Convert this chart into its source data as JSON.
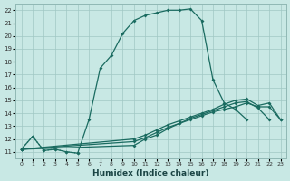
{
  "xlabel": "Humidex (Indice chaleur)",
  "xlim": [
    -0.5,
    23.5
  ],
  "ylim": [
    10.5,
    22.5
  ],
  "xticks": [
    0,
    1,
    2,
    3,
    4,
    5,
    6,
    7,
    8,
    9,
    10,
    11,
    12,
    13,
    14,
    15,
    16,
    17,
    18,
    19,
    20,
    21,
    22,
    23
  ],
  "yticks": [
    11,
    12,
    13,
    14,
    15,
    16,
    17,
    18,
    19,
    20,
    21,
    22
  ],
  "background_color": "#c8e8e4",
  "grid_color": "#a0c8c4",
  "line_color": "#1a6b60",
  "line1_x": [
    0,
    1,
    2,
    3,
    4,
    5,
    6,
    7,
    8,
    9,
    10,
    11,
    12,
    13,
    14,
    15,
    16,
    17,
    18,
    19,
    20
  ],
  "line1_y": [
    11.2,
    12.2,
    11.1,
    11.2,
    11.0,
    10.9,
    13.5,
    17.5,
    18.5,
    20.2,
    21.2,
    21.6,
    21.8,
    22.0,
    22.0,
    22.1,
    21.2,
    16.6,
    14.8,
    14.3,
    13.5
  ],
  "line1_dot_x": [
    0,
    1,
    2,
    3,
    4,
    5
  ],
  "line1_dot_y": [
    11.2,
    12.2,
    11.1,
    11.2,
    11.0,
    10.9
  ],
  "line2_x": [
    0,
    10,
    11,
    12,
    13,
    14,
    15,
    16,
    17,
    18,
    19,
    20,
    21,
    22
  ],
  "line2_y": [
    11.2,
    11.5,
    12.0,
    12.3,
    12.8,
    13.2,
    13.6,
    13.9,
    14.2,
    14.5,
    14.8,
    14.9,
    14.4,
    13.5
  ],
  "line3_x": [
    0,
    10,
    11,
    12,
    13,
    14,
    15,
    16,
    17,
    18,
    19,
    20,
    21,
    22,
    23
  ],
  "line3_y": [
    11.2,
    11.8,
    12.1,
    12.5,
    12.9,
    13.2,
    13.5,
    13.8,
    14.1,
    14.3,
    14.5,
    14.8,
    14.5,
    14.5,
    13.5
  ],
  "line4_x": [
    0,
    10,
    11,
    12,
    13,
    14,
    15,
    16,
    17,
    18,
    19,
    20,
    21,
    22,
    23
  ],
  "line4_y": [
    11.2,
    12.0,
    12.3,
    12.7,
    13.1,
    13.4,
    13.7,
    14.0,
    14.3,
    14.7,
    15.0,
    15.1,
    14.6,
    14.8,
    13.5
  ]
}
